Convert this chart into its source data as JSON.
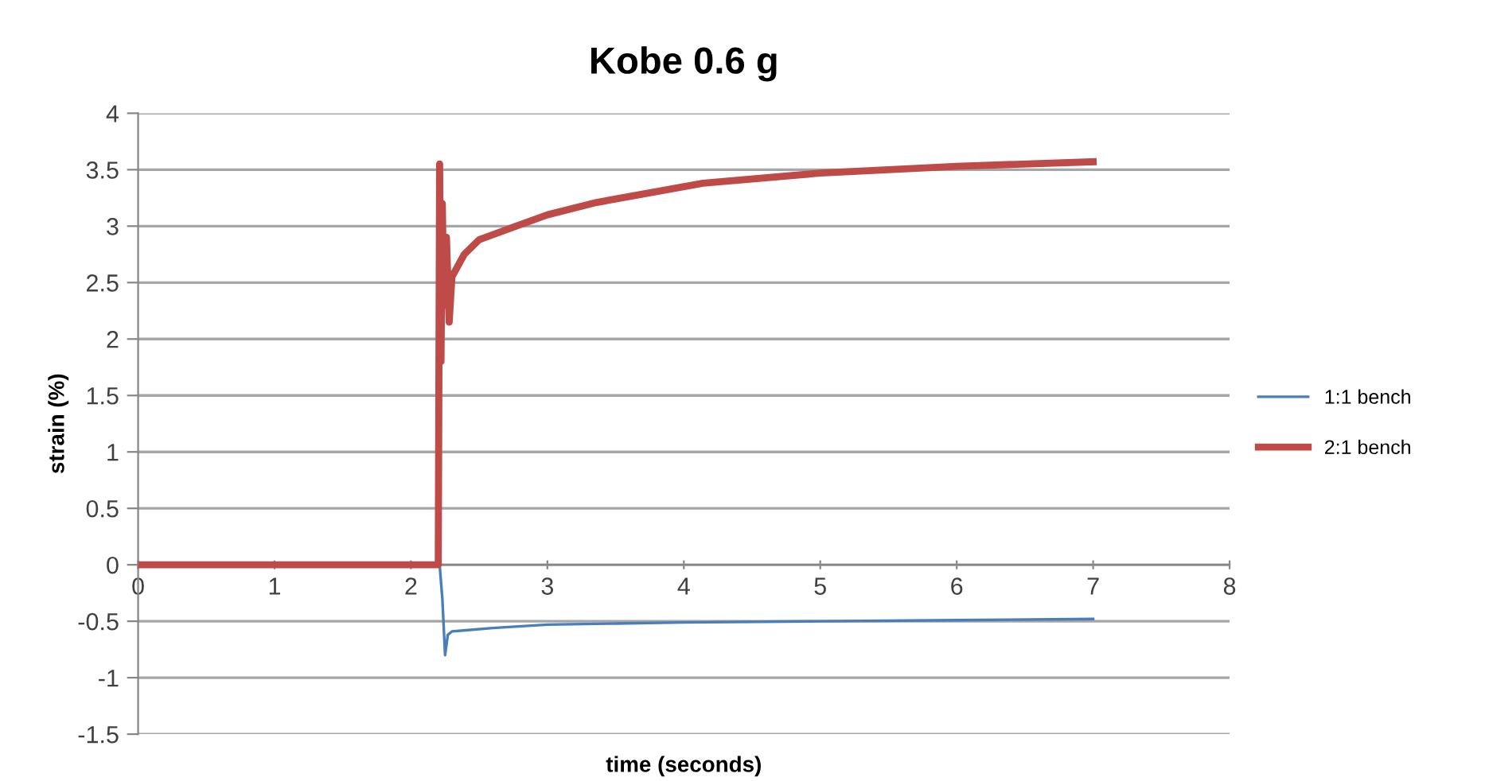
{
  "chart_data": {
    "type": "line",
    "title": "Kobe 0.6 g",
    "xlabel": "time (seconds)",
    "ylabel": "strain (%)",
    "xlim": [
      0,
      8
    ],
    "xticks": [
      0,
      1,
      2,
      3,
      4,
      5,
      6,
      7,
      8
    ],
    "ylim": [
      -1.5,
      4
    ],
    "yticks": [
      -1.5,
      -1,
      -0.5,
      0,
      0.5,
      1,
      1.5,
      2,
      2.5,
      3,
      3.5,
      4
    ],
    "grid": "y",
    "legend": "right",
    "marker": "none",
    "line_style": "solid",
    "series": [
      {
        "name": "1:1 bench",
        "color": "#4a7ebb",
        "x": [
          2.21,
          2.23,
          2.25,
          2.27,
          2.3,
          2.4,
          2.6,
          3.0,
          3.5,
          4.0,
          5.0,
          6.0,
          7.0
        ],
        "values": [
          0,
          -0.3,
          -0.8,
          -0.62,
          -0.59,
          -0.58,
          -0.56,
          -0.53,
          -0.52,
          -0.51,
          -0.5,
          -0.49,
          -0.48
        ]
      },
      {
        "name": "2:1 bench",
        "color": "#be4b48",
        "x": [
          0,
          1,
          2,
          2.2,
          2.21,
          2.22,
          2.23,
          2.24,
          2.26,
          2.28,
          2.3,
          2.39,
          2.5,
          2.77,
          3.0,
          3.36,
          4.14,
          5.0,
          6.0,
          7.0
        ],
        "values": [
          0,
          0,
          0,
          0,
          3.55,
          1.8,
          3.2,
          2.3,
          2.9,
          2.15,
          2.55,
          2.75,
          2.88,
          3.0,
          3.1,
          3.21,
          3.38,
          3.47,
          3.53,
          3.57
        ]
      }
    ]
  }
}
